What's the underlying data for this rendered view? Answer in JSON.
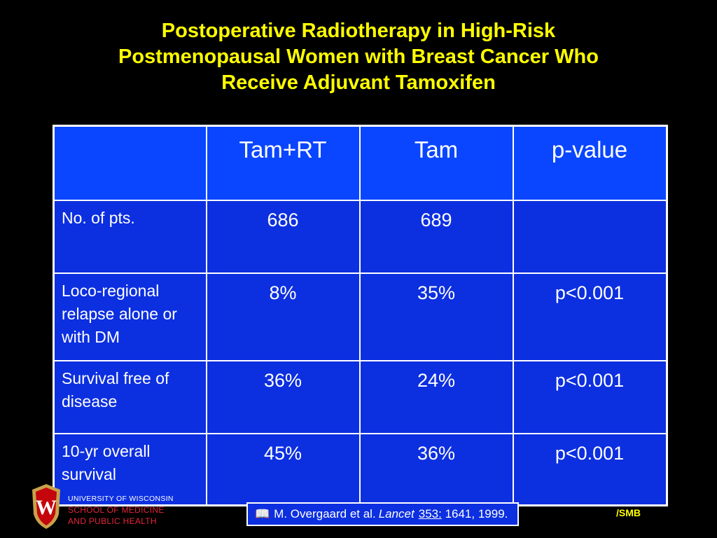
{
  "title": {
    "line1": "Postoperative Radiotherapy in High-Risk",
    "line2": "Postmenopausal Women with Breast Cancer Who",
    "line3": "Receive Adjuvant Tamoxifen"
  },
  "table": {
    "headers": [
      "",
      "Tam+RT",
      "Tam",
      "p-value"
    ],
    "rows": [
      {
        "label": "No. of pts.",
        "tam_rt": "686",
        "tam": "689",
        "p": ""
      },
      {
        "label": "Loco-regional relapse alone or with DM",
        "tam_rt": "8%",
        "tam": "35%",
        "p": "p<0.001"
      },
      {
        "label": "Survival free of disease",
        "tam_rt": "36%",
        "tam": "24%",
        "p": "p<0.001"
      },
      {
        "label": "10-yr overall survival",
        "tam_rt": "45%",
        "tam": "36%",
        "p": "p<0.001"
      }
    ]
  },
  "footer": {
    "university": "UNIVERSITY OF WISCONSIN",
    "school_line1": "SCHOOL OF MEDICINE",
    "school_line2": "AND PUBLIC HEALTH",
    "logo_icon": "uw-crest-icon",
    "logo_letter": "W",
    "citation": {
      "icon": "book-icon",
      "authors": "M. Overgaard et al.",
      "journal": "Lancet",
      "volume": "353:",
      "pages_year": "1641, 1999."
    },
    "credit": "/SMB"
  },
  "colors": {
    "background": "#000000",
    "title": "#ffff00",
    "header_cell": "#0a46ff",
    "body_cell": "#0c2fe0",
    "school_red": "#e8243a"
  }
}
